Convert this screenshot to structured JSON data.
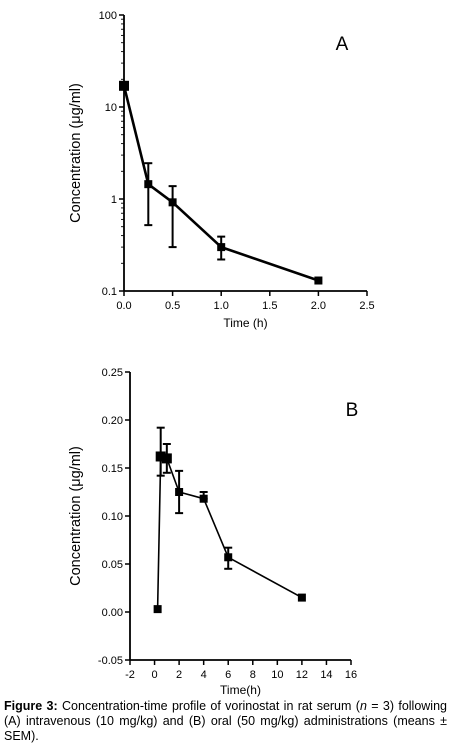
{
  "chart_data": [
    {
      "panel": "A",
      "type": "line",
      "ylabel": "Concentration (μg/ml)",
      "xlabel": "Time (h)",
      "yscale": "log",
      "ylim": [
        0.1,
        100
      ],
      "xlim": [
        0,
        2.5
      ],
      "x_ticks": [
        "0.0",
        "0.5",
        "1.0",
        "1.5",
        "2.0",
        "2.5"
      ],
      "y_ticks": [
        "0.1",
        "1",
        "10",
        "100"
      ],
      "x_tick_values": [
        0,
        0.5,
        1.0,
        1.5,
        2.0,
        2.5
      ],
      "y_tick_values": [
        0.1,
        1,
        10,
        100
      ],
      "series": [
        {
          "x": [
            0.0,
            0.25,
            0.5,
            1.0,
            2.0
          ],
          "y": [
            17,
            1.45,
            0.92,
            0.3,
            0.13
          ],
          "err_low": [
            17,
            0.52,
            0.3,
            0.22,
            0.13
          ],
          "err_high": [
            17,
            2.45,
            1.38,
            0.39,
            0.13
          ]
        }
      ]
    },
    {
      "panel": "B",
      "type": "line",
      "ylabel": "Concentration (μg/ml)",
      "xlabel": "Time(h)",
      "ylim": [
        -0.05,
        0.25
      ],
      "xlim": [
        -2,
        16
      ],
      "x_ticks": [
        "-2",
        "0",
        "2",
        "4",
        "6",
        "8",
        "10",
        "12",
        "14",
        "16"
      ],
      "y_ticks": [
        "-0.05",
        "0.00",
        "0.05",
        "0.10",
        "0.15",
        "0.20",
        "0.25"
      ],
      "x_tick_values": [
        -2,
        0,
        2,
        4,
        6,
        8,
        10,
        12,
        14,
        16
      ],
      "y_tick_values": [
        -0.05,
        0,
        0.05,
        0.1,
        0.15,
        0.2,
        0.25
      ],
      "series": [
        {
          "x": [
            0.25,
            0.5,
            1.0,
            2.0,
            4.0,
            6.0,
            12.0
          ],
          "y": [
            0.003,
            0.162,
            0.16,
            0.125,
            0.118,
            0.057,
            0.015
          ],
          "err_low": [
            0.003,
            0.142,
            0.145,
            0.103,
            0.118,
            0.045,
            0.015
          ],
          "err_high": [
            0.003,
            0.192,
            0.175,
            0.147,
            0.125,
            0.067,
            0.015
          ]
        }
      ]
    }
  ],
  "caption": {
    "label": "Figure 3:",
    "text_before": " Concentration-time profile of vorinostat in rat serum (",
    "n_symbol": "n",
    "text_after": " = 3) following (A) intravenous (10 mg/kg) and (B) oral (50 mg/kg) administrations (means ± SEM)."
  }
}
